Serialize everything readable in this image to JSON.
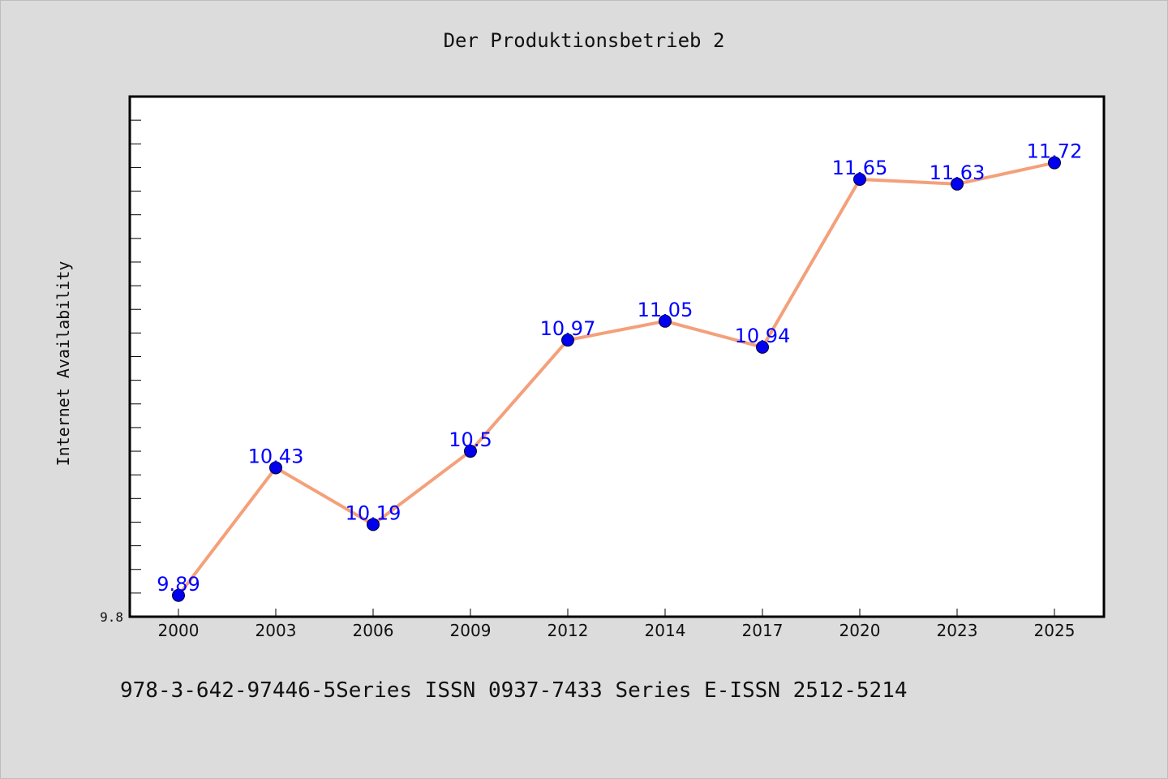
{
  "chart_data": {
    "type": "line",
    "title": "Der Produktionsbetrieb 2",
    "ylabel": "Internet Availability",
    "xlabel": "",
    "categories": [
      "2000",
      "2003",
      "2006",
      "2009",
      "2012",
      "2014",
      "2017",
      "2020",
      "2023",
      "2025"
    ],
    "series": [
      {
        "values": [
          9.89,
          10.43,
          10.19,
          10.5,
          10.97,
          11.05,
          10.94,
          11.65,
          11.63,
          11.72
        ],
        "data_labels": [
          "9.89",
          "10.43",
          "10.19",
          "10.5",
          "10.97",
          "11.05",
          "10.94",
          "11.65",
          "11.63",
          "11.72"
        ]
      }
    ],
    "ylim": [
      9.8,
      12.0
    ],
    "y_tick_label": "9.8",
    "grid": false,
    "legend": "none",
    "line_color": "#f4a07a",
    "marker_color": "#0000ee",
    "label_color": "#0000ff"
  },
  "footer": {
    "text": "978-3-642-97446-5Series ISSN 0937-7433 Series E-ISSN 2512-5214"
  }
}
